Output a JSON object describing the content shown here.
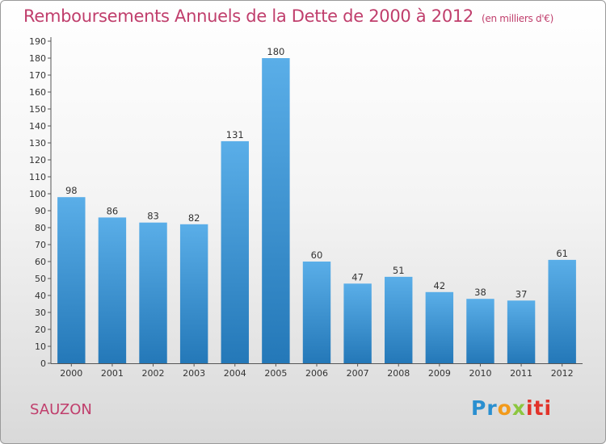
{
  "title": "Remboursements Annuels de la Dette de 2000 à 2012",
  "unit": "(en milliers d'€)",
  "commune": "SAUZON",
  "logo": {
    "p1": "Pr",
    "p2": "o",
    "p3": "x",
    "p4": "iti",
    "full": "Proxiti"
  },
  "colors": {
    "accent": "#c03e6c",
    "bar_top": "#5aaee8",
    "bar_bottom": "#2478b8"
  },
  "chart_data": {
    "type": "bar",
    "title": "Remboursements Annuels de la Dette de 2000 à 2012",
    "ylabel": "(en milliers d'€)",
    "xlabel": "",
    "categories": [
      "2000",
      "2001",
      "2002",
      "2003",
      "2004",
      "2005",
      "2006",
      "2007",
      "2008",
      "2009",
      "2010",
      "2011",
      "2012"
    ],
    "values": [
      98,
      86,
      83,
      82,
      131,
      180,
      60,
      47,
      51,
      42,
      38,
      37,
      61
    ],
    "ylim": [
      0,
      190
    ],
    "yticks": [
      0,
      10,
      20,
      30,
      40,
      50,
      60,
      70,
      80,
      90,
      100,
      110,
      120,
      130,
      140,
      150,
      160,
      170,
      180,
      190
    ],
    "grid": false,
    "legend": "none"
  }
}
